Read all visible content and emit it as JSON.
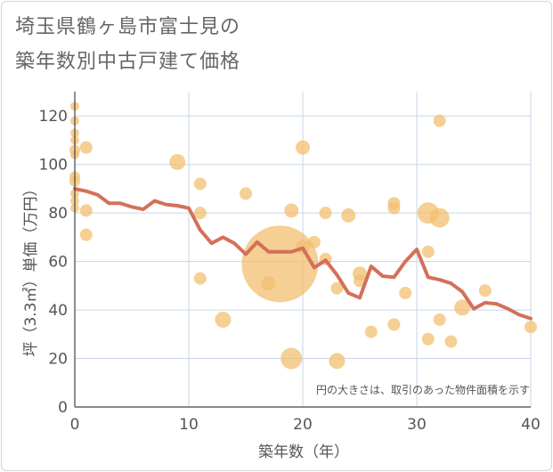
{
  "title_line1": "埼玉県鶴ヶ島市富士見の",
  "title_line2": "築年数別中古戸建て価格",
  "chart_data": {
    "type": "scatter",
    "xlabel": "築年数（年）",
    "ylabel": "坪（3.3㎡）単価（万円）",
    "xlim": [
      0,
      40
    ],
    "ylim": [
      0,
      130
    ],
    "xticks": [
      0,
      10,
      20,
      30,
      40
    ],
    "yticks": [
      0,
      20,
      40,
      60,
      80,
      100,
      120
    ],
    "grid": true,
    "note": "円の大きさは、取引のあった物件面積を示す",
    "colors": {
      "bubble": "#f2bf70",
      "line": "#d4705a",
      "grid": "#c9d6e6"
    },
    "points": [
      {
        "x": 0,
        "y": 124,
        "s": 5
      },
      {
        "x": 0,
        "y": 118,
        "s": 5
      },
      {
        "x": 0,
        "y": 113,
        "s": 5
      },
      {
        "x": 0,
        "y": 110,
        "s": 5
      },
      {
        "x": 0,
        "y": 106,
        "s": 6
      },
      {
        "x": 0,
        "y": 104,
        "s": 5
      },
      {
        "x": 0,
        "y": 95,
        "s": 6
      },
      {
        "x": 0,
        "y": 93,
        "s": 6
      },
      {
        "x": 0,
        "y": 88,
        "s": 5
      },
      {
        "x": 0,
        "y": 85,
        "s": 5
      },
      {
        "x": 0,
        "y": 82,
        "s": 5
      },
      {
        "x": 1,
        "y": 107,
        "s": 7
      },
      {
        "x": 1,
        "y": 81,
        "s": 7
      },
      {
        "x": 1,
        "y": 71,
        "s": 7
      },
      {
        "x": 9,
        "y": 101,
        "s": 9
      },
      {
        "x": 11,
        "y": 92,
        "s": 7
      },
      {
        "x": 11,
        "y": 80,
        "s": 7
      },
      {
        "x": 11,
        "y": 53,
        "s": 7
      },
      {
        "x": 13,
        "y": 36,
        "s": 9
      },
      {
        "x": 15,
        "y": 88,
        "s": 7
      },
      {
        "x": 17,
        "y": 51,
        "s": 8
      },
      {
        "x": 18,
        "y": 59,
        "s": 43
      },
      {
        "x": 19,
        "y": 81,
        "s": 8
      },
      {
        "x": 19,
        "y": 20,
        "s": 12
      },
      {
        "x": 20,
        "y": 107,
        "s": 8
      },
      {
        "x": 20,
        "y": 66,
        "s": 8
      },
      {
        "x": 21,
        "y": 68,
        "s": 7
      },
      {
        "x": 22,
        "y": 80,
        "s": 7
      },
      {
        "x": 22,
        "y": 61,
        "s": 7
      },
      {
        "x": 23,
        "y": 19,
        "s": 9
      },
      {
        "x": 23,
        "y": 49,
        "s": 7
      },
      {
        "x": 24,
        "y": 79,
        "s": 8
      },
      {
        "x": 25,
        "y": 55,
        "s": 8
      },
      {
        "x": 25,
        "y": 52,
        "s": 7
      },
      {
        "x": 26,
        "y": 31,
        "s": 7
      },
      {
        "x": 28,
        "y": 84,
        "s": 7
      },
      {
        "x": 28,
        "y": 82,
        "s": 7
      },
      {
        "x": 28,
        "y": 34,
        "s": 7
      },
      {
        "x": 29,
        "y": 47,
        "s": 7
      },
      {
        "x": 31,
        "y": 80,
        "s": 12
      },
      {
        "x": 31,
        "y": 64,
        "s": 7
      },
      {
        "x": 31,
        "y": 28,
        "s": 7
      },
      {
        "x": 32,
        "y": 118,
        "s": 7
      },
      {
        "x": 32,
        "y": 78,
        "s": 11
      },
      {
        "x": 32,
        "y": 36,
        "s": 7
      },
      {
        "x": 33,
        "y": 27,
        "s": 7
      },
      {
        "x": 34,
        "y": 41,
        "s": 9
      },
      {
        "x": 36,
        "y": 48,
        "s": 7
      },
      {
        "x": 40,
        "y": 33,
        "s": 7
      }
    ],
    "line": {
      "x": [
        0,
        1,
        2,
        3,
        4,
        5,
        6,
        7,
        8,
        9,
        10,
        11,
        12,
        13,
        14,
        15,
        16,
        17,
        18,
        19,
        20,
        21,
        22,
        23,
        24,
        25,
        26,
        27,
        28,
        29,
        30,
        31,
        32,
        33,
        34,
        35,
        36,
        37,
        38,
        39,
        40
      ],
      "y": [
        90,
        89,
        87.5,
        84,
        84,
        82.5,
        81.5,
        85,
        83.5,
        83,
        82,
        73,
        67.5,
        70,
        67.5,
        63,
        68,
        64,
        64,
        64,
        65.5,
        57.5,
        60.5,
        54.5,
        47,
        45,
        58,
        54,
        53.5,
        60,
        65,
        53.5,
        52.5,
        51,
        47.5,
        40.5,
        43,
        42.5,
        40.5,
        38,
        36.5
      ]
    }
  }
}
